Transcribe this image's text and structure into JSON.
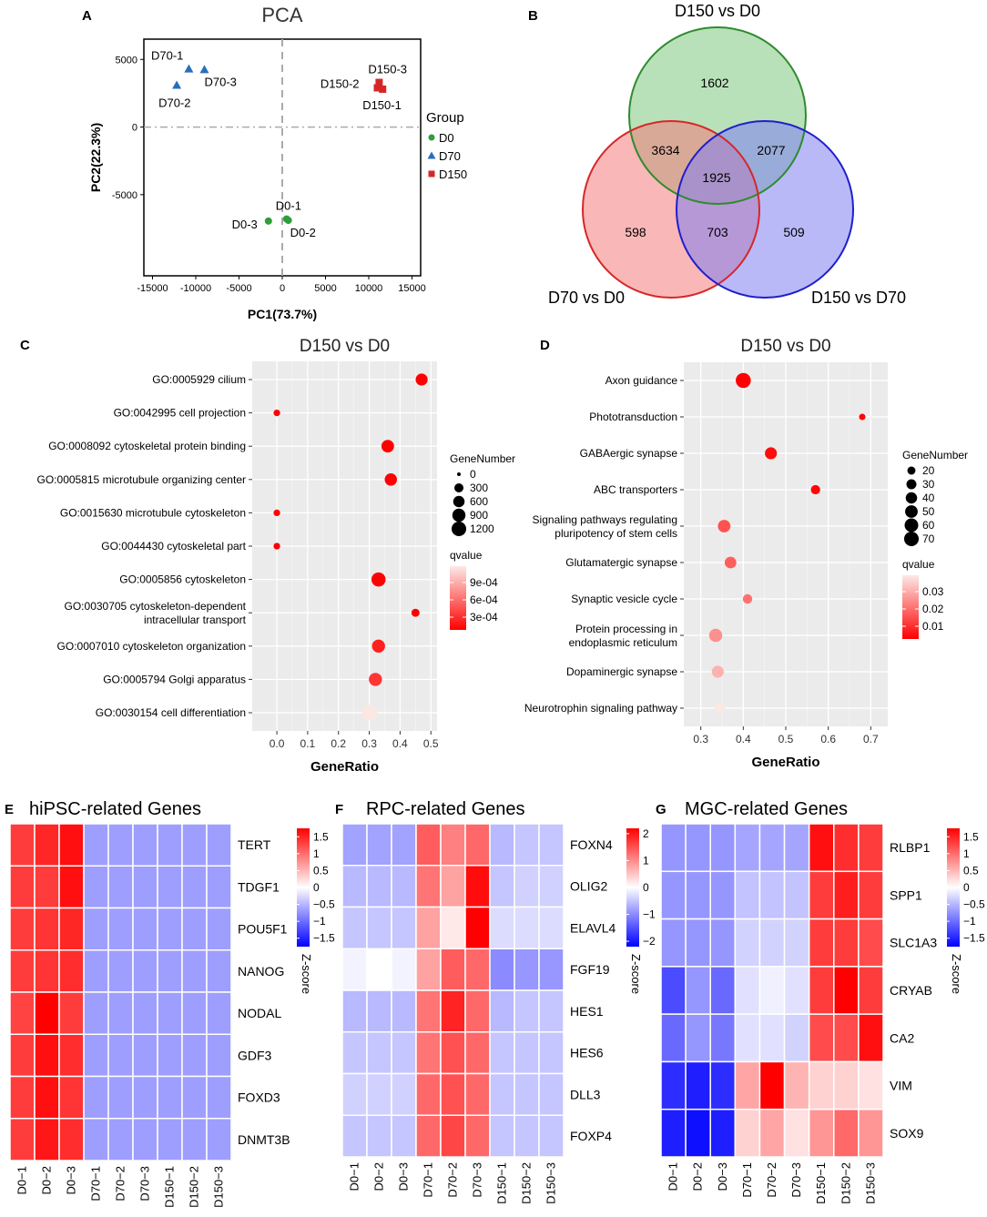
{
  "chart_data": [
    {
      "id": "A",
      "type": "scatter",
      "panel_label": "A",
      "title": "PCA",
      "xlabel": "PC1(73.7%)",
      "ylabel": "PC2(22.3%)",
      "xlim": [
        -16000,
        16000
      ],
      "ylim": [
        -11000,
        6500
      ],
      "xticks": [
        -15000,
        -10000,
        -5000,
        0,
        5000,
        10000,
        15000
      ],
      "xtick_labels": [
        "-15000",
        "-10000",
        "-5000",
        "0",
        "5000",
        "10000",
        "15000"
      ],
      "yticks": [
        5000,
        0,
        -5000
      ],
      "ytick_labels": [
        "5000",
        "0",
        "-5000"
      ],
      "legend_title": "Group",
      "series": [
        {
          "name": "D0",
          "color": "#2e9e3a",
          "shape": "circle",
          "points": [
            {
              "label": "D0-1",
              "x": 500,
              "y": -6800
            },
            {
              "label": "D0-2",
              "x": 700,
              "y": -6900
            },
            {
              "label": "D0-3",
              "x": -1600,
              "y": -6950
            }
          ]
        },
        {
          "name": "D70",
          "color": "#2a6ebb",
          "shape": "triangle",
          "points": [
            {
              "label": "D70-1",
              "x": -10800,
              "y": 4300
            },
            {
              "label": "D70-3",
              "x": -9000,
              "y": 4250
            },
            {
              "label": "D70-2",
              "x": -12200,
              "y": 3100
            }
          ]
        },
        {
          "name": "D150",
          "color": "#d62728",
          "shape": "square",
          "points": [
            {
              "label": "D150-3",
              "x": 11200,
              "y": 3300
            },
            {
              "label": "D150-2",
              "x": 11000,
              "y": 2900
            },
            {
              "label": "D150-1",
              "x": 11600,
              "y": 2800
            }
          ]
        }
      ]
    },
    {
      "id": "B",
      "type": "venn",
      "panel_label": "B",
      "sets": [
        {
          "name": "D150 vs D0",
          "color": "#2e8b2e",
          "fill": "#7fc97f"
        },
        {
          "name": "D70 vs D0",
          "color": "#d62728",
          "fill": "#f47c7c"
        },
        {
          "name": "D150 vs D70",
          "color": "#1f1fcc",
          "fill": "#7f7ff2"
        }
      ],
      "regions": {
        "a_only": "1602",
        "b_only": "598",
        "c_only": "509",
        "ab": "3634",
        "ac": "2077",
        "bc": "703",
        "abc": "1925"
      }
    },
    {
      "id": "C",
      "type": "scatter",
      "panel_label": "C",
      "title": "D150 vs D0",
      "xlabel": "GeneRatio",
      "xlim": [
        -0.08,
        0.52
      ],
      "xticks": [
        0.0,
        0.1,
        0.2,
        0.3,
        0.4,
        0.5
      ],
      "xtick_labels": [
        "0.0",
        "0.1",
        "0.2",
        "0.3",
        "0.4",
        "0.5"
      ],
      "size_legend_title": "GeneNumber",
      "size_legend": [
        {
          "label": "0",
          "value": 0
        },
        {
          "label": "300",
          "value": 300
        },
        {
          "label": "600",
          "value": 600
        },
        {
          "label": "900",
          "value": 900
        },
        {
          "label": "1200",
          "value": 1200
        }
      ],
      "size_max": 1400,
      "color_legend_title": "qvalue",
      "color_legend": [
        "9e-04",
        "6e-04",
        "3e-04"
      ],
      "qmin": 0.0001,
      "qmax": 0.0012,
      "terms": [
        {
          "label": [
            "GO:0005929 cilium"
          ],
          "ratio": 0.47,
          "count": 700,
          "q": 0.0001
        },
        {
          "label": [
            "GO:0042995 cell projection"
          ],
          "ratio": 0.0,
          "count": 90,
          "q": 0.0001
        },
        {
          "label": [
            "GO:0008092 cytoskeletal protein binding"
          ],
          "ratio": 0.36,
          "count": 800,
          "q": 0.0001
        },
        {
          "label": [
            "GO:0005815 microtubule organizing center"
          ],
          "ratio": 0.37,
          "count": 750,
          "q": 0.0001
        },
        {
          "label": [
            "GO:0015630 microtubule cytoskeleton"
          ],
          "ratio": 0.0,
          "count": 90,
          "q": 0.0001
        },
        {
          "label": [
            "GO:0044430 cytoskeletal part"
          ],
          "ratio": 0.0,
          "count": 90,
          "q": 0.0001
        },
        {
          "label": [
            "GO:0005856 cytoskeleton"
          ],
          "ratio": 0.33,
          "count": 1100,
          "q": 0.0001
        },
        {
          "label": [
            "GO:0030705 cytoskeleton-dependent",
            "intracellular transport"
          ],
          "ratio": 0.45,
          "count": 200,
          "q": 0.0001
        },
        {
          "label": [
            "GO:0007010 cytoskeleton organization"
          ],
          "ratio": 0.33,
          "count": 900,
          "q": 0.00025
        },
        {
          "label": [
            "GO:0005794 Golgi apparatus"
          ],
          "ratio": 0.32,
          "count": 900,
          "q": 0.00035
        },
        {
          "label": [
            "GO:0030154 cell differentiation"
          ],
          "ratio": 0.3,
          "count": 1400,
          "q": 0.0012
        }
      ]
    },
    {
      "id": "D",
      "type": "scatter",
      "panel_label": "D",
      "title": "D150 vs D0",
      "xlabel": "GeneRatio",
      "xlim": [
        0.26,
        0.74
      ],
      "xticks": [
        0.3,
        0.4,
        0.5,
        0.6,
        0.7
      ],
      "xtick_labels": [
        "0.3",
        "0.4",
        "0.5",
        "0.6",
        "0.7"
      ],
      "size_legend_title": "GeneNumber",
      "size_legend": [
        {
          "label": "20",
          "value": 20
        },
        {
          "label": "30",
          "value": 30
        },
        {
          "label": "40",
          "value": 40
        },
        {
          "label": "50",
          "value": 50
        },
        {
          "label": "60",
          "value": 60
        },
        {
          "label": "70",
          "value": 70
        }
      ],
      "size_min": 10,
      "size_max": 80,
      "color_legend_title": "qvalue",
      "color_legend": [
        "0.03",
        "0.02",
        "0.01"
      ],
      "qmin": 0.001,
      "qmax": 0.04,
      "terms": [
        {
          "label": [
            "Axon guidance"
          ],
          "ratio": 0.4,
          "count": 75,
          "q": 0.001
        },
        {
          "label": [
            "Phototransduction"
          ],
          "ratio": 0.68,
          "count": 14,
          "q": 0.002
        },
        {
          "label": [
            "GABAergic synapse"
          ],
          "ratio": 0.465,
          "count": 45,
          "q": 0.003
        },
        {
          "label": [
            "ABC transporters"
          ],
          "ratio": 0.57,
          "count": 26,
          "q": 0.002
        },
        {
          "label": [
            "Signaling pathways regulating",
            "pluripotency of stem cells"
          ],
          "ratio": 0.355,
          "count": 50,
          "q": 0.015
        },
        {
          "label": [
            "Glutamatergic synapse"
          ],
          "ratio": 0.37,
          "count": 42,
          "q": 0.017
        },
        {
          "label": [
            "Synaptic vesicle cycle"
          ],
          "ratio": 0.41,
          "count": 27,
          "q": 0.02
        },
        {
          "label": [
            "Protein processing in",
            "endoplasmic reticulum"
          ],
          "ratio": 0.335,
          "count": 55,
          "q": 0.025
        },
        {
          "label": [
            "Dopaminergic synapse"
          ],
          "ratio": 0.34,
          "count": 45,
          "q": 0.031
        },
        {
          "label": [
            "Neurotrophin signaling pathway"
          ],
          "ratio": 0.345,
          "count": 38,
          "q": 0.04
        }
      ]
    },
    {
      "id": "E",
      "type": "heatmap",
      "panel_label": "E",
      "title": "hiPSC-related Genes",
      "columns": [
        "D0−1",
        "D0−2",
        "D0−3",
        "D70−1",
        "D70−2",
        "D70−3",
        "D150−1",
        "D150−2",
        "D150−3"
      ],
      "rows": [
        "TERT",
        "TDGF1",
        "POU5F1",
        "NANOG",
        "NODAL",
        "GDF3",
        "FOXD3",
        "DNMT3B"
      ],
      "values": [
        [
          1.3,
          1.45,
          1.6,
          -0.65,
          -0.65,
          -0.65,
          -0.65,
          -0.65,
          -0.65
        ],
        [
          1.3,
          1.3,
          1.6,
          -0.65,
          -0.65,
          -0.65,
          -0.65,
          -0.65,
          -0.65
        ],
        [
          1.3,
          1.35,
          1.45,
          -0.65,
          -0.65,
          -0.65,
          -0.65,
          -0.65,
          -0.65
        ],
        [
          1.3,
          1.35,
          1.4,
          -0.65,
          -0.65,
          -0.65,
          -0.65,
          -0.65,
          -0.65
        ],
        [
          1.25,
          1.7,
          1.3,
          -0.65,
          -0.65,
          -0.65,
          -0.65,
          -0.65,
          -0.65
        ],
        [
          1.3,
          1.6,
          1.4,
          -0.65,
          -0.65,
          -0.65,
          -0.65,
          -0.65,
          -0.65
        ],
        [
          1.3,
          1.6,
          1.35,
          -0.65,
          -0.65,
          -0.65,
          -0.65,
          -0.65,
          -0.65
        ],
        [
          1.3,
          1.55,
          1.4,
          -0.65,
          -0.65,
          -0.65,
          -0.65,
          -0.65,
          -0.65
        ]
      ],
      "scale_max": 1.7,
      "colorbar_ticks": [
        {
          "label": "1.5",
          "value": 1.5
        },
        {
          "label": "1",
          "value": 1
        },
        {
          "label": "0.5",
          "value": 0.5
        },
        {
          "label": "0",
          "value": 0
        },
        {
          "label": "−0.5",
          "value": -0.5
        },
        {
          "label": "−1",
          "value": -1
        },
        {
          "label": "−1.5",
          "value": -1.5
        }
      ],
      "colorbar_label": "Z-score"
    },
    {
      "id": "F",
      "type": "heatmap",
      "panel_label": "F",
      "title": "RPC-related Genes",
      "columns": [
        "D0−1",
        "D0−2",
        "D0−3",
        "D70−1",
        "D70−2",
        "D70−3",
        "D150−1",
        "D150−2",
        "D150−3"
      ],
      "rows": [
        "FOXN4",
        "OLIG2",
        "ELAVL4",
        "FGF19",
        "HES1",
        "HES6",
        "DLL3",
        "FOXP4"
      ],
      "values": [
        [
          -0.8,
          -0.8,
          -0.8,
          1.4,
          1.1,
          1.3,
          -0.6,
          -0.5,
          -0.5
        ],
        [
          -0.6,
          -0.6,
          -0.6,
          1.2,
          0.8,
          2.1,
          -0.5,
          -0.4,
          -0.4
        ],
        [
          -0.5,
          -0.5,
          -0.5,
          0.8,
          0.2,
          2.2,
          -0.3,
          -0.3,
          -0.3
        ],
        [
          -0.1,
          0.0,
          -0.1,
          0.8,
          1.4,
          1.3,
          -1.0,
          -0.9,
          -0.9
        ],
        [
          -0.6,
          -0.6,
          -0.6,
          1.2,
          1.9,
          1.3,
          -0.6,
          -0.5,
          -0.5
        ],
        [
          -0.5,
          -0.5,
          -0.5,
          1.2,
          1.5,
          1.3,
          -0.5,
          -0.5,
          -0.5
        ],
        [
          -0.4,
          -0.4,
          -0.4,
          1.3,
          1.5,
          1.3,
          -0.5,
          -0.5,
          -0.5
        ],
        [
          -0.5,
          -0.5,
          -0.5,
          1.3,
          1.6,
          1.3,
          -0.5,
          -0.5,
          -0.5
        ]
      ],
      "scale_max": 2.2,
      "colorbar_ticks": [
        {
          "label": "2",
          "value": 2
        },
        {
          "label": "1",
          "value": 1
        },
        {
          "label": "0",
          "value": 0
        },
        {
          "label": "−1",
          "value": -1
        },
        {
          "label": "−2",
          "value": -2
        }
      ],
      "colorbar_label": "Z-score"
    },
    {
      "id": "G",
      "type": "heatmap",
      "panel_label": "G",
      "title": "MGC-related Genes",
      "columns": [
        "D0−1",
        "D0−2",
        "D0−3",
        "D70−1",
        "D70−2",
        "D70−3",
        "D150−1",
        "D150−2",
        "D150−3"
      ],
      "rows": [
        "RLBP1",
        "SPP1",
        "SLC1A3",
        "CRYAB",
        "CA2",
        "VIM",
        "SOX9"
      ],
      "values": [
        [
          -0.7,
          -0.7,
          -0.7,
          -0.6,
          -0.6,
          -0.6,
          1.6,
          1.4,
          1.3
        ],
        [
          -0.7,
          -0.7,
          -0.7,
          -0.4,
          -0.4,
          -0.4,
          1.3,
          1.5,
          1.3
        ],
        [
          -0.7,
          -0.7,
          -0.7,
          -0.3,
          -0.3,
          -0.3,
          1.3,
          1.3,
          1.2
        ],
        [
          -1.2,
          -0.7,
          -1.0,
          -0.2,
          -0.1,
          -0.2,
          1.3,
          1.7,
          1.3
        ],
        [
          -1.0,
          -0.7,
          -0.9,
          -0.2,
          -0.2,
          -0.3,
          1.2,
          1.2,
          1.6
        ],
        [
          -1.4,
          -1.5,
          -1.4,
          0.6,
          1.7,
          0.5,
          0.3,
          0.3,
          0.2
        ],
        [
          -1.5,
          -1.6,
          -1.5,
          0.3,
          0.6,
          0.2,
          0.7,
          1.0,
          0.7
        ]
      ],
      "scale_max": 1.7,
      "colorbar_ticks": [
        {
          "label": "1.5",
          "value": 1.5
        },
        {
          "label": "1",
          "value": 1
        },
        {
          "label": "0.5",
          "value": 0.5
        },
        {
          "label": "0",
          "value": 0
        },
        {
          "label": "−0.5",
          "value": -0.5
        },
        {
          "label": "−1",
          "value": -1
        },
        {
          "label": "−1.5",
          "value": -1.5
        }
      ],
      "colorbar_label": "Z-score"
    }
  ]
}
